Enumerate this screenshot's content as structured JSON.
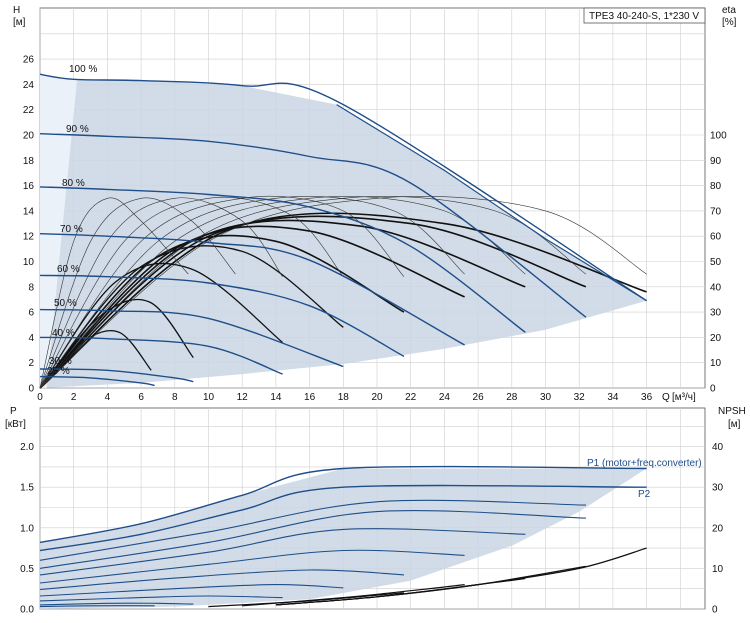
{
  "chart_data": [
    {
      "type": "line",
      "title": "TPE3 40-240-S, 1*230 V",
      "xlabel": "Q",
      "xunit": "[м³/ч]",
      "ylabel": "H",
      "yunit": "[м]",
      "y2label": "eta",
      "y2unit": "[%]",
      "xlim": [
        0,
        38
      ],
      "ylim": [
        0,
        28
      ],
      "y2lim": [
        0,
        140
      ],
      "xticks": [
        "0",
        "2",
        "4",
        "6",
        "8",
        "10",
        "12",
        "14",
        "16",
        "18",
        "20",
        "22",
        "24",
        "26",
        "28",
        "30",
        "32",
        "34",
        "36"
      ],
      "yticks": [
        "0",
        "2",
        "4",
        "6",
        "8",
        "10",
        "12",
        "14",
        "16",
        "18",
        "20",
        "22",
        "24",
        "26"
      ],
      "y2ticks": [
        "0",
        "10",
        "20",
        "30",
        "40",
        "50",
        "60",
        "70",
        "80",
        "90",
        "100"
      ],
      "grid": true,
      "colors": {
        "pump_curve": "#1f4e89",
        "efficiency_curve": "#111111",
        "operating_area": "#c9d6e4"
      },
      "speed_labels": [
        "100 %",
        "90 %",
        "80 %",
        "70 %",
        "60 %",
        "50 %",
        "40 %",
        "30 %",
        "25 %"
      ],
      "series": [
        {
          "name": "100 %",
          "x": [
            0,
            2,
            6,
            12,
            18,
            36
          ],
          "y": [
            24.8,
            24.4,
            24.3,
            23.9,
            22.4,
            6.9
          ]
        },
        {
          "name": "90 %",
          "x": [
            0,
            4,
            10,
            16,
            22,
            32.4
          ],
          "y": [
            20.1,
            19.9,
            19.5,
            18.3,
            16.2,
            5.6
          ]
        },
        {
          "name": "80 %",
          "x": [
            0,
            4,
            10,
            16,
            22,
            28.8
          ],
          "y": [
            15.9,
            15.7,
            15.3,
            14.3,
            11.2,
            4.4
          ]
        },
        {
          "name": "70 %",
          "x": [
            0,
            4,
            10,
            16,
            25.2
          ],
          "y": [
            12.2,
            12.0,
            11.5,
            10.1,
            3.4
          ]
        },
        {
          "name": "60 %",
          "x": [
            0,
            4,
            10,
            16,
            21.6
          ],
          "y": [
            8.9,
            8.8,
            8.3,
            6.5,
            2.5
          ]
        },
        {
          "name": "50 %",
          "x": [
            0,
            4,
            10,
            18
          ],
          "y": [
            6.2,
            6.1,
            5.5,
            1.7
          ]
        },
        {
          "name": "40 %",
          "x": [
            0,
            4,
            10,
            14.4
          ],
          "y": [
            4.0,
            3.9,
            3.3,
            1.1
          ]
        },
        {
          "name": "30 %",
          "x": [
            0,
            4,
            8,
            9.1
          ],
          "y": [
            1.5,
            1.4,
            0.8,
            0.5
          ]
        },
        {
          "name": "25 %",
          "x": [
            0,
            3,
            6,
            6.8
          ],
          "y": [
            0.9,
            0.8,
            0.4,
            0.2
          ]
        }
      ]
    },
    {
      "type": "line",
      "xlabel": "Q",
      "ylabel": "P",
      "yunit": "[кВт]",
      "y2label": "NPSH",
      "y2unit": "[м]",
      "xlim": [
        0,
        38
      ],
      "ylim": [
        0,
        2.2
      ],
      "y2lim": [
        0,
        44
      ],
      "yticks": [
        "0.0",
        "0.5",
        "1.0",
        "1.5",
        "2.0"
      ],
      "y2ticks": [
        "0",
        "10",
        "20",
        "30",
        "40"
      ],
      "grid": true,
      "series": [
        {
          "name": "P1 (motor+freq.converter)",
          "x": [
            0,
            6,
            12,
            18,
            36
          ],
          "y": [
            0.82,
            1.05,
            1.4,
            1.73,
            1.73
          ]
        },
        {
          "name": "P2",
          "x": [
            0,
            6,
            12,
            18,
            36
          ],
          "y": [
            0.72,
            0.92,
            1.22,
            1.5,
            1.5
          ]
        }
      ]
    }
  ]
}
